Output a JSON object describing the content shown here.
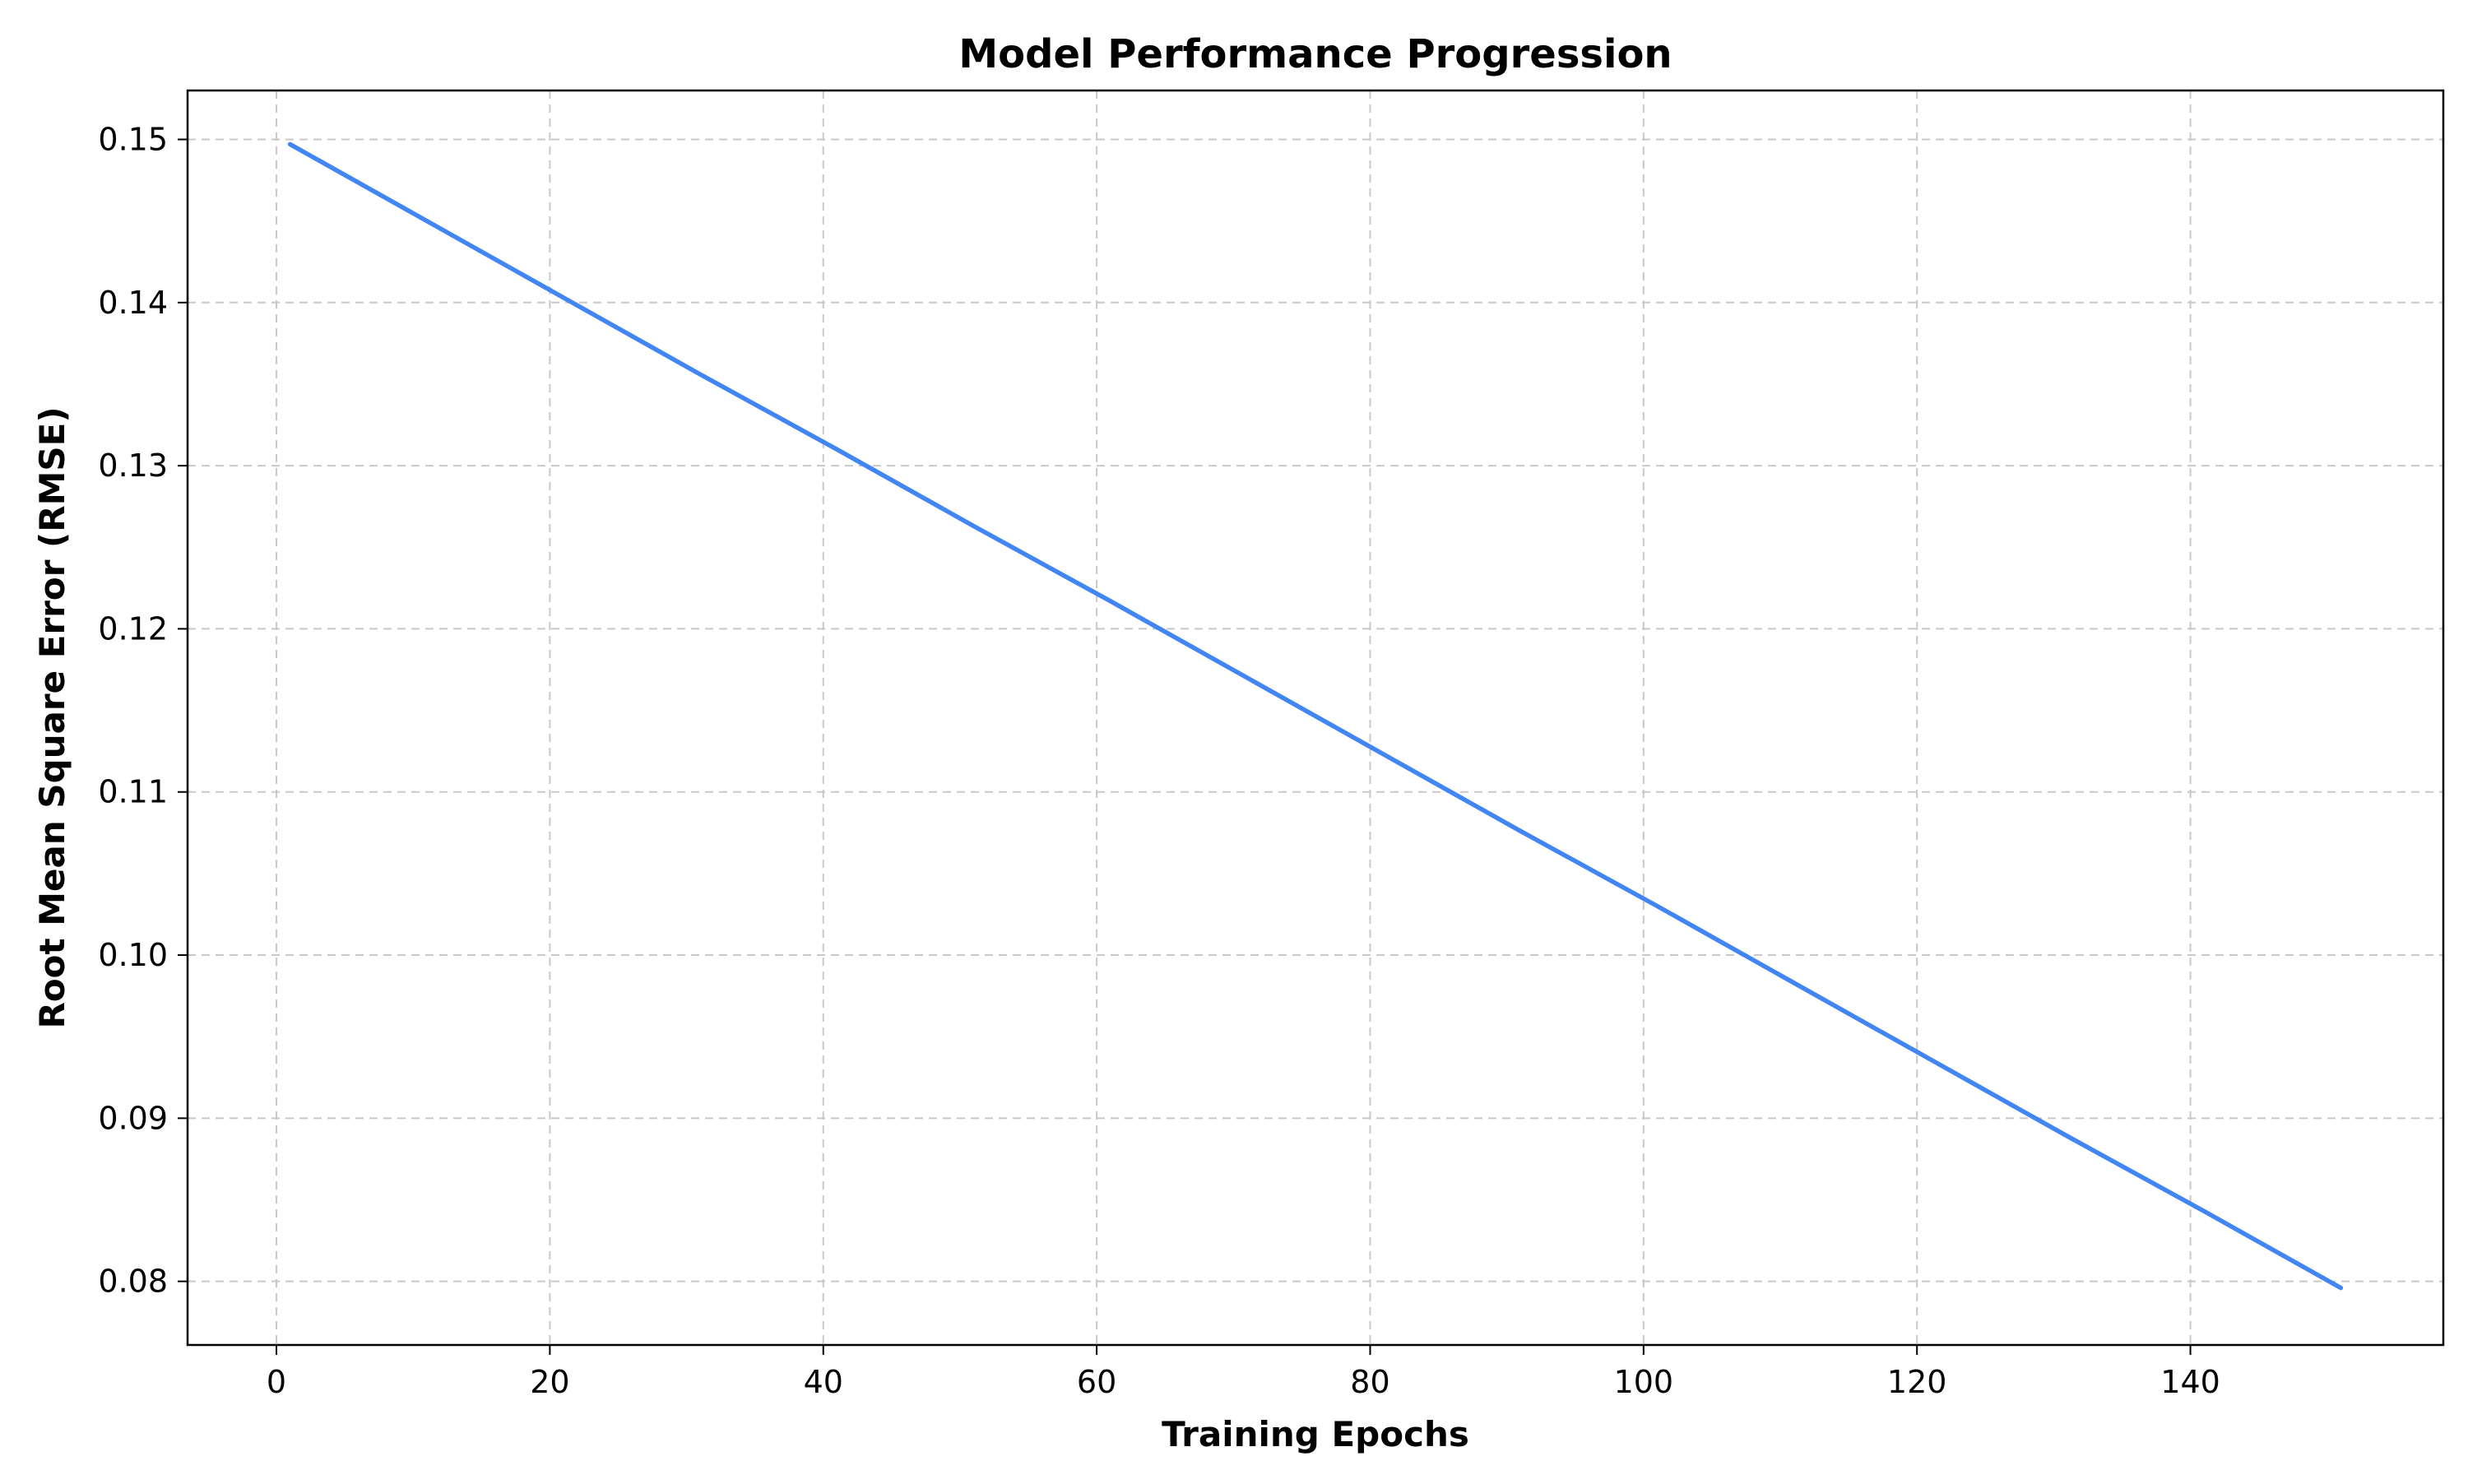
{
  "chart_data": {
    "type": "line",
    "title": "Model Performance Progression",
    "xlabel": "Training Epochs",
    "ylabel": "Root Mean Square Error (RMSE)",
    "xlim": [
      -6.5,
      158.5
    ],
    "ylim": [
      0.0761,
      0.153
    ],
    "grid": true,
    "x_ticks": [
      0,
      20,
      40,
      60,
      80,
      100,
      120,
      140
    ],
    "x_tick_labels": [
      "0",
      "20",
      "40",
      "60",
      "80",
      "100",
      "120",
      "140"
    ],
    "y_ticks": [
      0.08,
      0.09,
      0.1,
      0.11,
      0.12,
      0.13,
      0.14,
      0.15
    ],
    "y_tick_labels": [
      "0.08",
      "0.09",
      "0.10",
      "0.11",
      "0.12",
      "0.13",
      "0.14",
      "0.15"
    ],
    "series": [
      {
        "color": "#4285f4",
        "x": [
          1,
          11,
          21,
          31,
          41,
          51,
          61,
          71,
          81,
          91,
          101,
          111,
          121,
          131,
          141,
          151
        ],
        "y": [
          0.1497,
          0.145,
          0.1403,
          0.1356,
          0.131,
          0.1263,
          0.1217,
          0.117,
          0.1123,
          0.1076,
          0.103,
          0.0983,
          0.0936,
          0.0889,
          0.0843,
          0.0796
        ]
      }
    ]
  }
}
